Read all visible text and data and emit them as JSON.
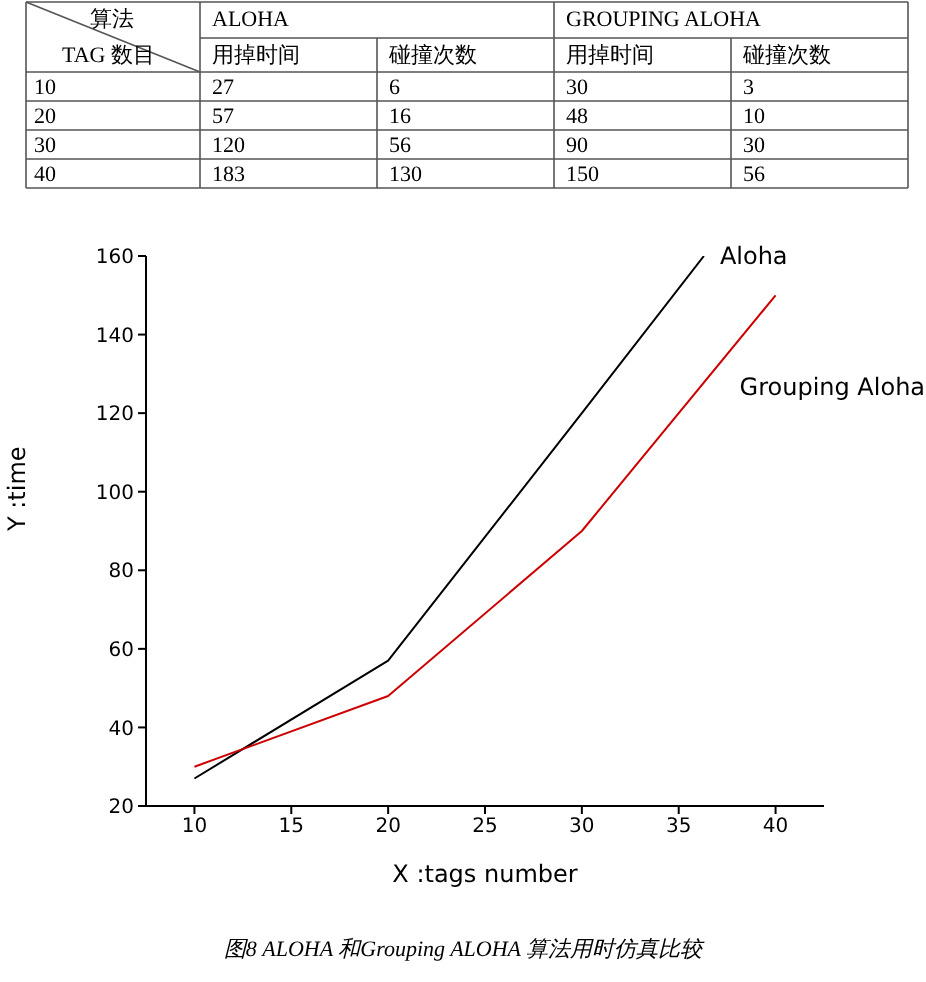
{
  "chart_data": [
    {
      "type": "heatmap",
      "categories": [
        "用掉时间",
        "碰撞次数",
        "用掉时间",
        "碰撞次数"
      ],
      "y_categories": [
        "10",
        "20",
        "30",
        "40"
      ],
      "cells": [
        [
          27,
          6,
          30,
          3
        ],
        [
          57,
          16,
          48,
          10
        ],
        [
          120,
          56,
          90,
          30
        ],
        [
          183,
          130,
          150,
          56
        ]
      ],
      "data_labels": true,
      "annotations": [
        "算法",
        "TAG 数目",
        "ALOHA",
        "GROUPING ALOHA"
      ]
    },
    {
      "type": "line",
      "xlabel": "X :tags number",
      "ylabel": "Y :time",
      "x": [
        10,
        20,
        30,
        40
      ],
      "xlim": [
        7.5,
        42.5
      ],
      "xticks": [
        10,
        15,
        20,
        25,
        30,
        35,
        40
      ],
      "ylim": [
        20,
        160
      ],
      "yticks": [
        20,
        40,
        60,
        80,
        100,
        120,
        140,
        160
      ],
      "marker": "none",
      "series": [
        {
          "name": "Aloha",
          "color": "#000000",
          "x": [
            10,
            20,
            30,
            36.3
          ],
          "values": [
            27,
            57,
            120,
            160
          ]
        },
        {
          "name": "Grouping Aloha",
          "color": "#cc0000",
          "values": [
            30,
            48,
            90,
            150
          ]
        }
      ],
      "annotations": [
        "图8 ALOHA 和Grouping ALOHA 算法用时仿真比较"
      ]
    }
  ]
}
